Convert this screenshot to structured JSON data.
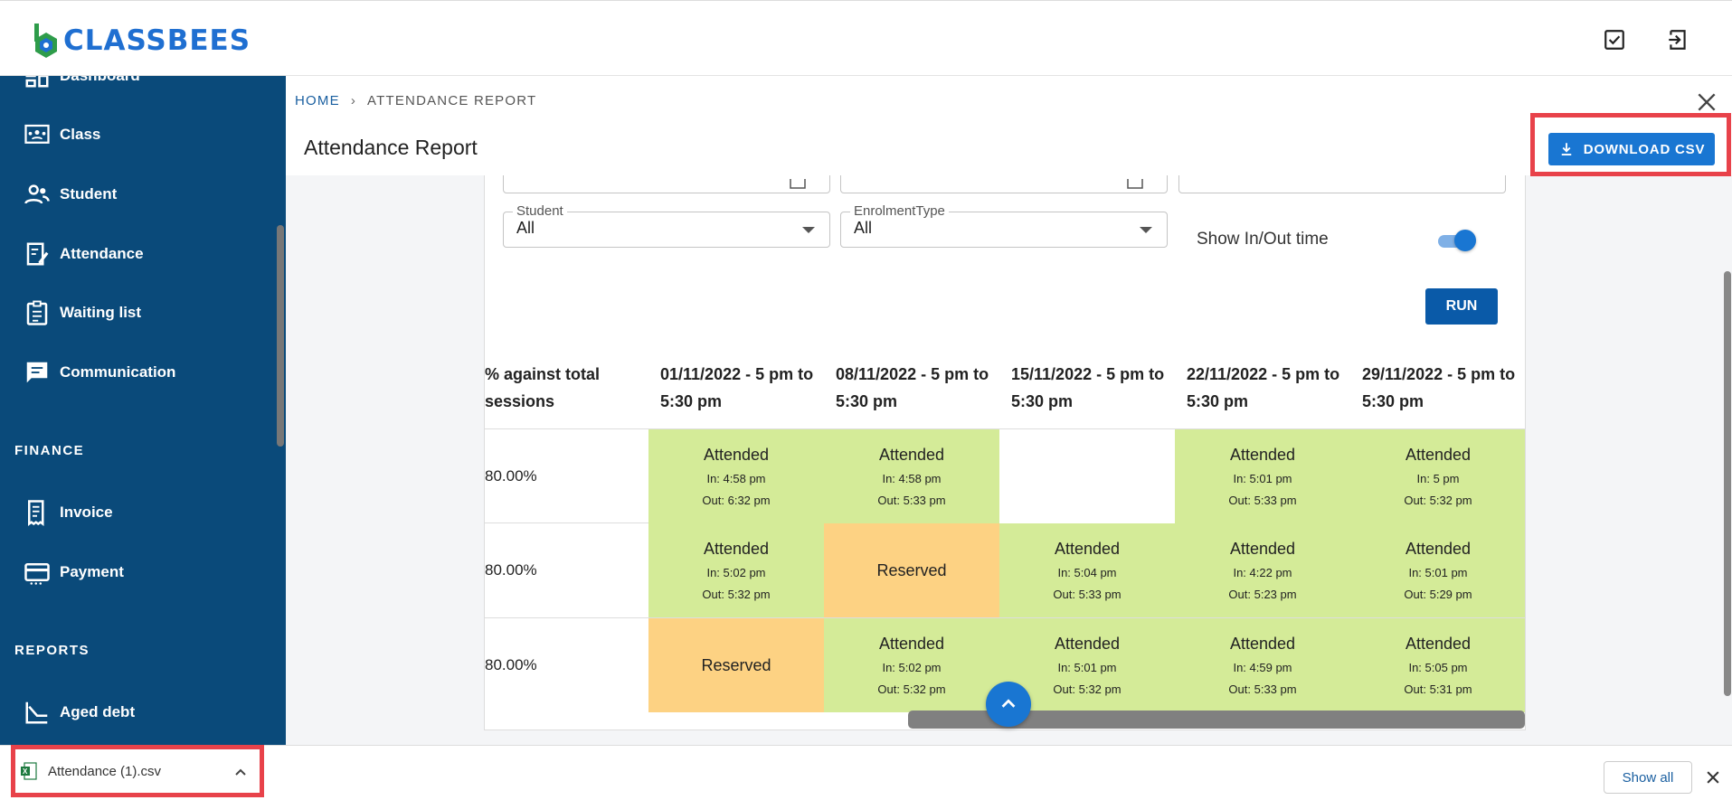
{
  "app": {
    "logo_text": "CLASSBEES"
  },
  "sidebar": {
    "items": [
      {
        "label": "Dashboard",
        "icon": "dashboard-icon"
      },
      {
        "label": "Class",
        "icon": "class-icon"
      },
      {
        "label": "Student",
        "icon": "student-icon"
      },
      {
        "label": "Attendance",
        "icon": "attendance-icon"
      },
      {
        "label": "Waiting list",
        "icon": "waiting-list-icon"
      },
      {
        "label": "Communication",
        "icon": "communication-icon"
      }
    ],
    "finance_label": "FINANCE",
    "finance_items": [
      {
        "label": "Invoice",
        "icon": "invoice-icon"
      },
      {
        "label": "Payment",
        "icon": "payment-icon"
      }
    ],
    "reports_label": "REPORTS",
    "reports_items": [
      {
        "label": "Aged debt",
        "icon": "aged-debt-icon"
      }
    ]
  },
  "breadcrumb": {
    "home": "HOME",
    "separator": "›",
    "current": "ATTENDANCE REPORT"
  },
  "page": {
    "title": "Attendance Report",
    "download_label": "DOWNLOAD CSV"
  },
  "filters": {
    "student": {
      "label": "Student",
      "value": "All"
    },
    "enrolment": {
      "label": "EnrolmentType",
      "value": "All"
    },
    "show_inout_label": "Show In/Out time",
    "show_inout": true,
    "run_label": "RUN"
  },
  "table": {
    "headers": [
      "% against total sessions",
      "01/11/2022 - 5 pm to 5:30 pm",
      "08/11/2022 - 5 pm to 5:30 pm",
      "15/11/2022 - 5 pm to 5:30 pm",
      "22/11/2022 - 5 pm to 5:30 pm",
      "29/11/2022 - 5 pm to 5:30 pm"
    ],
    "rows": [
      {
        "pct": "80.00%",
        "cells": [
          {
            "status": "Attended",
            "in": "In: 4:58 pm",
            "out": "Out: 6:32 pm",
            "color": "#d4eb98"
          },
          {
            "status": "Attended",
            "in": "In: 4:58 pm",
            "out": "Out: 5:33 pm",
            "color": "#d4eb98"
          },
          {
            "status": "",
            "in": "",
            "out": "",
            "color": "#ffffff"
          },
          {
            "status": "Attended",
            "in": "In: 5:01 pm",
            "out": "Out: 5:33 pm",
            "color": "#d4eb98"
          },
          {
            "status": "Attended",
            "in": "In: 5 pm",
            "out": "Out: 5:32 pm",
            "color": "#d4eb98"
          }
        ]
      },
      {
        "pct": "80.00%",
        "cells": [
          {
            "status": "Attended",
            "in": "In: 5:02 pm",
            "out": "Out: 5:32 pm",
            "color": "#d4eb98"
          },
          {
            "status": "Reserved",
            "in": "",
            "out": "",
            "color": "#fdd283"
          },
          {
            "status": "Attended",
            "in": "In: 5:04 pm",
            "out": "Out: 5:33 pm",
            "color": "#d4eb98"
          },
          {
            "status": "Attended",
            "in": "In: 4:22 pm",
            "out": "Out: 5:23 pm",
            "color": "#d4eb98"
          },
          {
            "status": "Attended",
            "in": "In: 5:01 pm",
            "out": "Out: 5:29 pm",
            "color": "#d4eb98"
          }
        ]
      },
      {
        "pct": "80.00%",
        "cells": [
          {
            "status": "Reserved",
            "in": "",
            "out": "",
            "color": "#fdd283"
          },
          {
            "status": "Attended",
            "in": "In: 5:02 pm",
            "out": "Out: 5:32 pm",
            "color": "#d4eb98"
          },
          {
            "status": "Attended",
            "in": "In: 5:01 pm",
            "out": "Out: 5:32 pm",
            "color": "#d4eb98"
          },
          {
            "status": "Attended",
            "in": "In: 4:59 pm",
            "out": "Out: 5:33 pm",
            "color": "#d4eb98"
          },
          {
            "status": "Attended",
            "in": "In: 5:05 pm",
            "out": "Out: 5:31 pm",
            "color": "#d4eb98"
          }
        ]
      }
    ]
  },
  "download_bar": {
    "filename": "Attendance (1).csv",
    "show_all": "Show all"
  },
  "colors": {
    "sidebar": "#0a4a7a",
    "accent": "#1976d2",
    "attended": "#d4eb98",
    "reserved": "#fdd283",
    "highlight": "#e8424a"
  }
}
